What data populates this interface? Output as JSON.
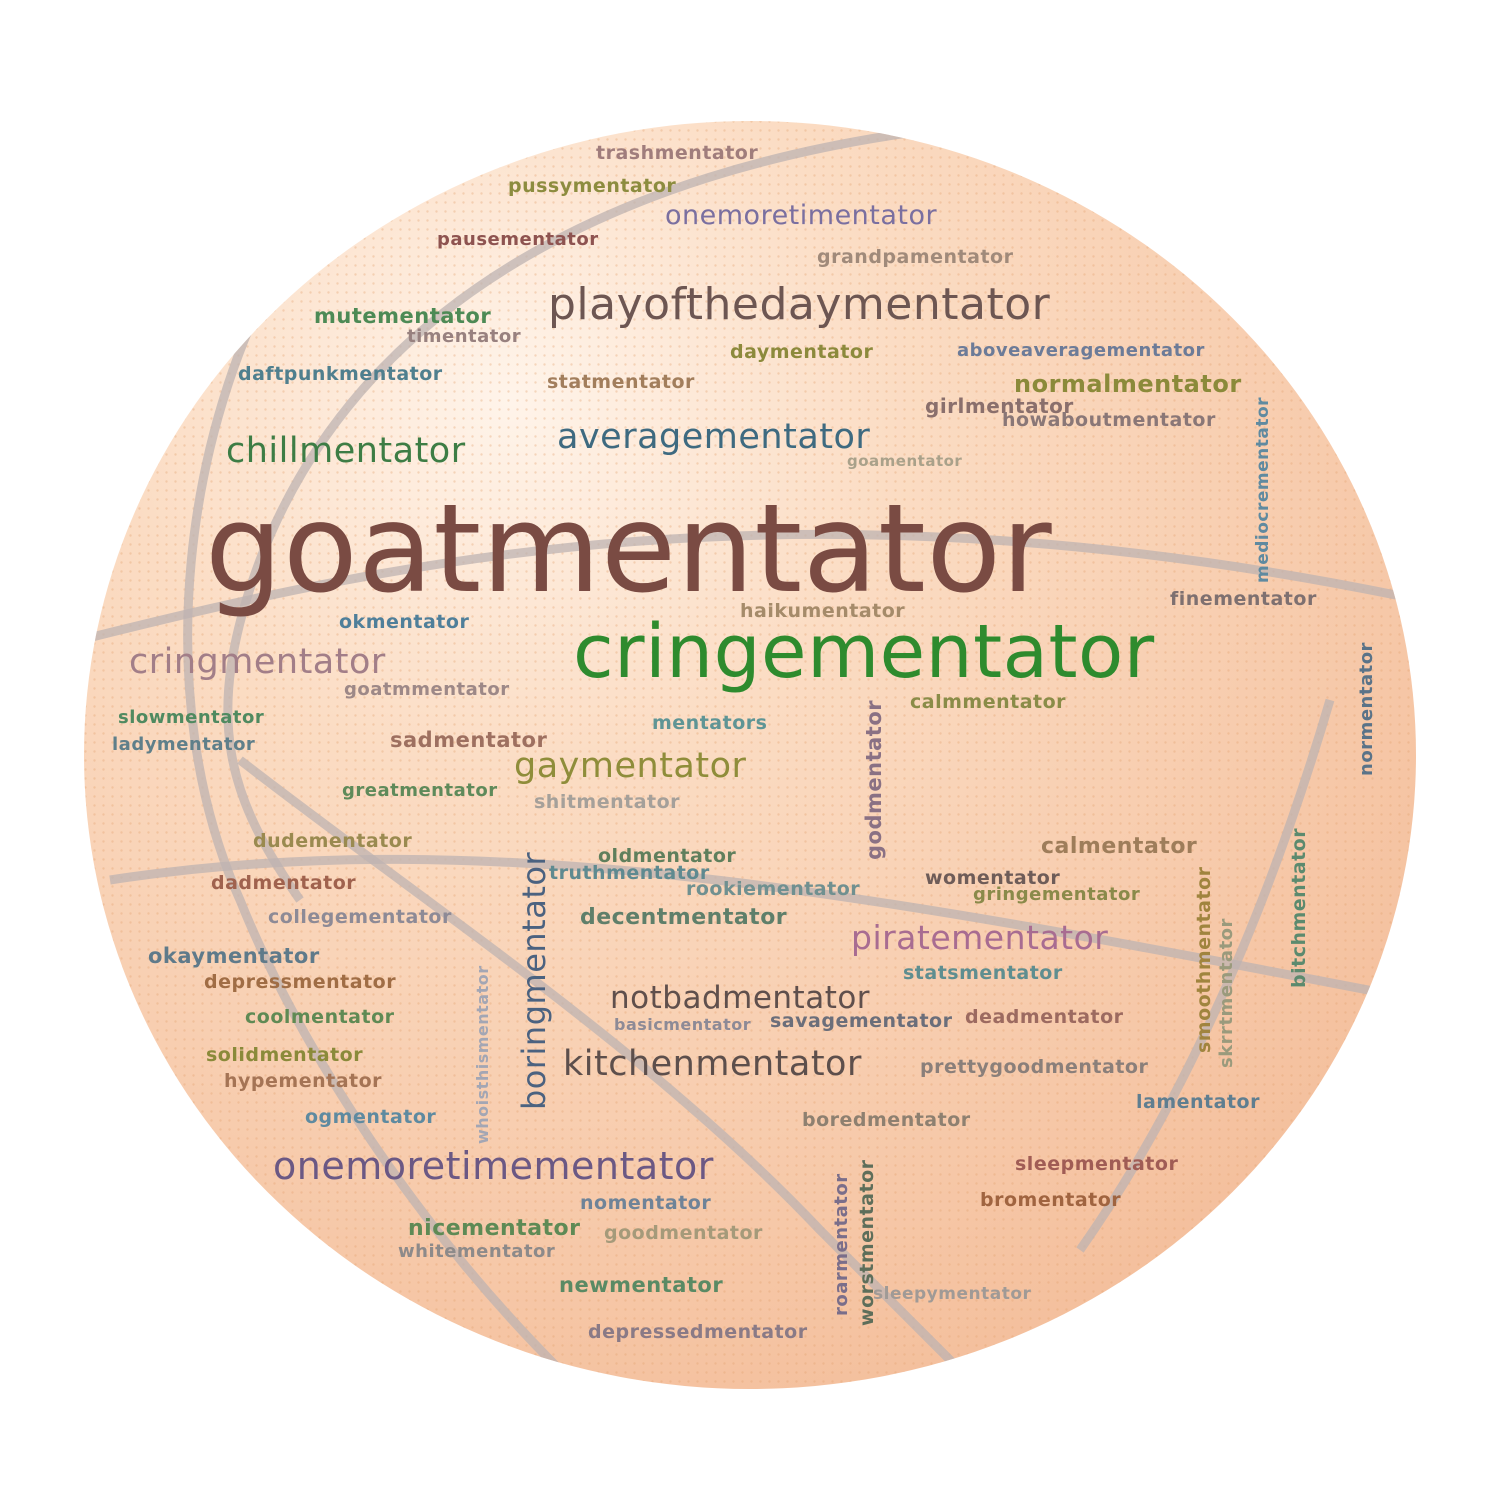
{
  "colors": {
    "ball_fill": "#f7c9a8",
    "ball_highlight": "#fff1e6",
    "seam": "#b9b2b3",
    "dots": "#e5a877"
  },
  "words": [
    {
      "text": "goatmentator",
      "color": "#7a4b43",
      "weight": "normal"
    },
    {
      "text": "cringementator",
      "color": "#2e8b2e",
      "weight": "normal"
    },
    {
      "text": "playofthedaymentator",
      "color": "#6d5652",
      "weight": "normal"
    },
    {
      "text": "onemoretimementator",
      "color": "#6b5884",
      "weight": "normal"
    },
    {
      "text": "averagementator",
      "color": "#3e6a80",
      "weight": "normal"
    },
    {
      "text": "chillmentator",
      "color": "#3d7d45",
      "weight": "normal"
    },
    {
      "text": "cringmentator",
      "color": "#a27e88",
      "weight": "normal"
    },
    {
      "text": "gaymentator",
      "color": "#8f8d3a",
      "weight": "normal"
    },
    {
      "text": "kitchenmentator",
      "color": "#5d4f4c",
      "weight": "normal"
    },
    {
      "text": "boringmentator",
      "color": "#4b6280",
      "weight": "normal"
    },
    {
      "text": "notbadmentator",
      "color": "#5f4f4c",
      "weight": "normal"
    },
    {
      "text": "piratementator",
      "color": "#a86c91",
      "weight": "normal"
    },
    {
      "text": "onemoretimentator",
      "color": "#7a6fa0",
      "weight": "normal"
    },
    {
      "text": "normalmentator",
      "color": "#8b8a3a",
      "weight": "bold"
    },
    {
      "text": "trashmentator",
      "color": "#a07d7c",
      "weight": "bold"
    },
    {
      "text": "pussymentator",
      "color": "#8c8c3f",
      "weight": "bold"
    },
    {
      "text": "pausementator",
      "color": "#8e5350",
      "weight": "bold"
    },
    {
      "text": "grandpamentator",
      "color": "#a08a7a",
      "weight": "bold"
    },
    {
      "text": "mutementator",
      "color": "#4d8a55",
      "weight": "bold"
    },
    {
      "text": "timentator",
      "color": "#98817f",
      "weight": "bold"
    },
    {
      "text": "daymentator",
      "color": "#8c8a3c",
      "weight": "bold"
    },
    {
      "text": "aboveaveragementator",
      "color": "#6c7b98",
      "weight": "bold"
    },
    {
      "text": "daftpunkmentator",
      "color": "#4f7f8e",
      "weight": "bold"
    },
    {
      "text": "statmentator",
      "color": "#a27e5c",
      "weight": "bold"
    },
    {
      "text": "girlmentator",
      "color": "#8a6f6c",
      "weight": "bold"
    },
    {
      "text": "howaboutmentator",
      "color": "#8a7777",
      "weight": "bold"
    },
    {
      "text": "goamentator",
      "color": "#a9a18a",
      "weight": "bold"
    },
    {
      "text": "mediocrementator",
      "color": "#5f8aa0",
      "weight": "bold"
    },
    {
      "text": "finementator",
      "color": "#7e7070",
      "weight": "bold"
    },
    {
      "text": "haikumentator",
      "color": "#a58b6a",
      "weight": "bold"
    },
    {
      "text": "okmentator",
      "color": "#4f7f9a",
      "weight": "bold"
    },
    {
      "text": "goatmmentator",
      "color": "#9d8887",
      "weight": "bold"
    },
    {
      "text": "calmmentator",
      "color": "#8a8c48",
      "weight": "bold"
    },
    {
      "text": "normentator",
      "color": "#5a7388",
      "weight": "bold"
    },
    {
      "text": "slowmentator",
      "color": "#4f8a60",
      "weight": "bold"
    },
    {
      "text": "ladymentator",
      "color": "#5f7f8a",
      "weight": "bold"
    },
    {
      "text": "mentators",
      "color": "#5f9595",
      "weight": "bold"
    },
    {
      "text": "sadmentator",
      "color": "#9e7060",
      "weight": "bold"
    },
    {
      "text": "godmentator",
      "color": "#8a7184",
      "weight": "bold"
    },
    {
      "text": "greatmentator",
      "color": "#5f8a5a",
      "weight": "bold"
    },
    {
      "text": "shitmentator",
      "color": "#a5a09a",
      "weight": "bold"
    },
    {
      "text": "dudementator",
      "color": "#9a8a50",
      "weight": "bold"
    },
    {
      "text": "oldmentator",
      "color": "#5f7f5c",
      "weight": "bold"
    },
    {
      "text": "calmentator",
      "color": "#9e7d5a",
      "weight": "bold"
    },
    {
      "text": "truthmentator",
      "color": "#5f8a90",
      "weight": "bold"
    },
    {
      "text": "dadmentator",
      "color": "#a0624e",
      "weight": "bold"
    },
    {
      "text": "rookiementator",
      "color": "#709090",
      "weight": "bold"
    },
    {
      "text": "womentator",
      "color": "#6e5c58",
      "weight": "bold"
    },
    {
      "text": "gringementator",
      "color": "#8a8a4a",
      "weight": "bold"
    },
    {
      "text": "bitchmentator",
      "color": "#5c8a6e",
      "weight": "bold"
    },
    {
      "text": "collegementator",
      "color": "#8d8a96",
      "weight": "bold"
    },
    {
      "text": "decentmentator",
      "color": "#5f7f6a",
      "weight": "bold"
    },
    {
      "text": "smoothmentator",
      "color": "#a0843e",
      "weight": "bold"
    },
    {
      "text": "skrrtmentator",
      "color": "#9a9a7c",
      "weight": "bold"
    },
    {
      "text": "okaymentator",
      "color": "#5f7a8a",
      "weight": "bold"
    },
    {
      "text": "depressmentator",
      "color": "#a06d45",
      "weight": "bold"
    },
    {
      "text": "statsmentator",
      "color": "#5f8e90",
      "weight": "bold"
    },
    {
      "text": "coolmentator",
      "color": "#5f8a54",
      "weight": "bold"
    },
    {
      "text": "basicmentator",
      "color": "#8d8a96",
      "weight": "bold"
    },
    {
      "text": "savagementator",
      "color": "#6b6e7a",
      "weight": "bold"
    },
    {
      "text": "deadmentator",
      "color": "#9c6a60",
      "weight": "bold"
    },
    {
      "text": "whoisthismentator",
      "color": "#a3a6b4",
      "weight": "bold"
    },
    {
      "text": "solidmentator",
      "color": "#8a8a3a",
      "weight": "bold"
    },
    {
      "text": "hypementator",
      "color": "#a57455",
      "weight": "bold"
    },
    {
      "text": "prettygoodmentator",
      "color": "#8a7f7a",
      "weight": "bold"
    },
    {
      "text": "ogmentator",
      "color": "#5e8aa0",
      "weight": "bold"
    },
    {
      "text": "lamentator",
      "color": "#5f7e90",
      "weight": "bold"
    },
    {
      "text": "boredmentator",
      "color": "#8e8070",
      "weight": "bold"
    },
    {
      "text": "sleepmentator",
      "color": "#a05c55",
      "weight": "bold"
    },
    {
      "text": "nomentator",
      "color": "#6f8398",
      "weight": "bold"
    },
    {
      "text": "bromentator",
      "color": "#a06440",
      "weight": "bold"
    },
    {
      "text": "nicementator",
      "color": "#5e8a55",
      "weight": "bold"
    },
    {
      "text": "goodmentator",
      "color": "#a59a7a",
      "weight": "bold"
    },
    {
      "text": "roarmentator",
      "color": "#7a6e8a",
      "weight": "bold"
    },
    {
      "text": "worstmentator",
      "color": "#5e6e5a",
      "weight": "bold"
    },
    {
      "text": "whitementator",
      "color": "#8d8a8a",
      "weight": "bold"
    },
    {
      "text": "newmentator",
      "color": "#5a8a64",
      "weight": "bold"
    },
    {
      "text": "sleepymentator",
      "color": "#a09a96",
      "weight": "bold"
    },
    {
      "text": "depressedmentator",
      "color": "#8a7a86",
      "weight": "bold"
    }
  ]
}
